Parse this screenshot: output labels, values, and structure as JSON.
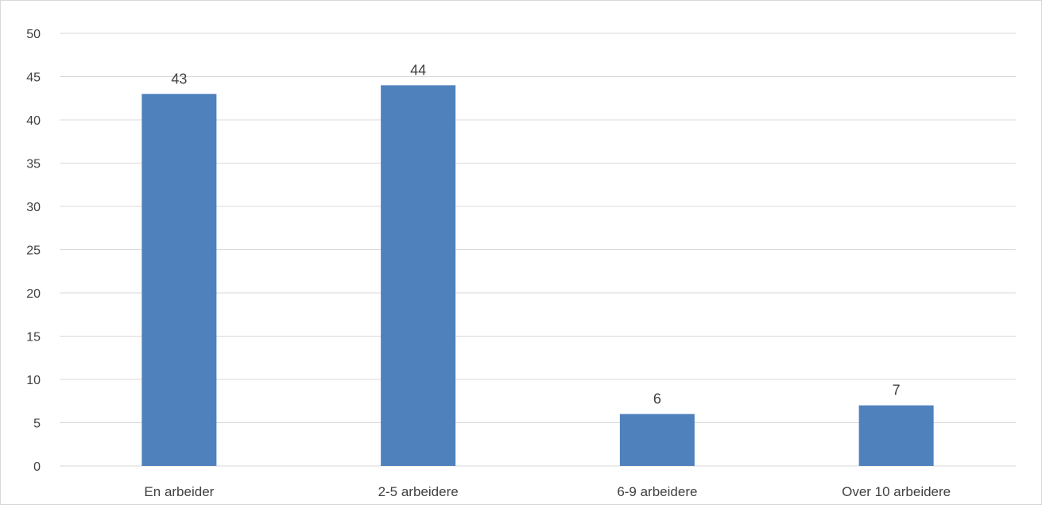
{
  "chart_data": {
    "type": "bar",
    "title": "",
    "xlabel": "",
    "ylabel": "",
    "categories": [
      "En arbeider",
      "2-5 arbeidere",
      "6-9 arbeidere",
      "Over 10 arbeidere"
    ],
    "values": [
      43,
      44,
      6,
      7
    ],
    "data_labels": [
      "43",
      "44",
      "6",
      "7"
    ],
    "ylim": [
      0,
      50
    ],
    "yticks": [
      "0",
      "5",
      "10",
      "15",
      "20",
      "25",
      "30",
      "35",
      "40",
      "45",
      "50"
    ],
    "grid": true,
    "legend": "none",
    "colors": {
      "bar": "#4f81bd",
      "grid": "#d9d9d9",
      "text": "#404040"
    }
  }
}
